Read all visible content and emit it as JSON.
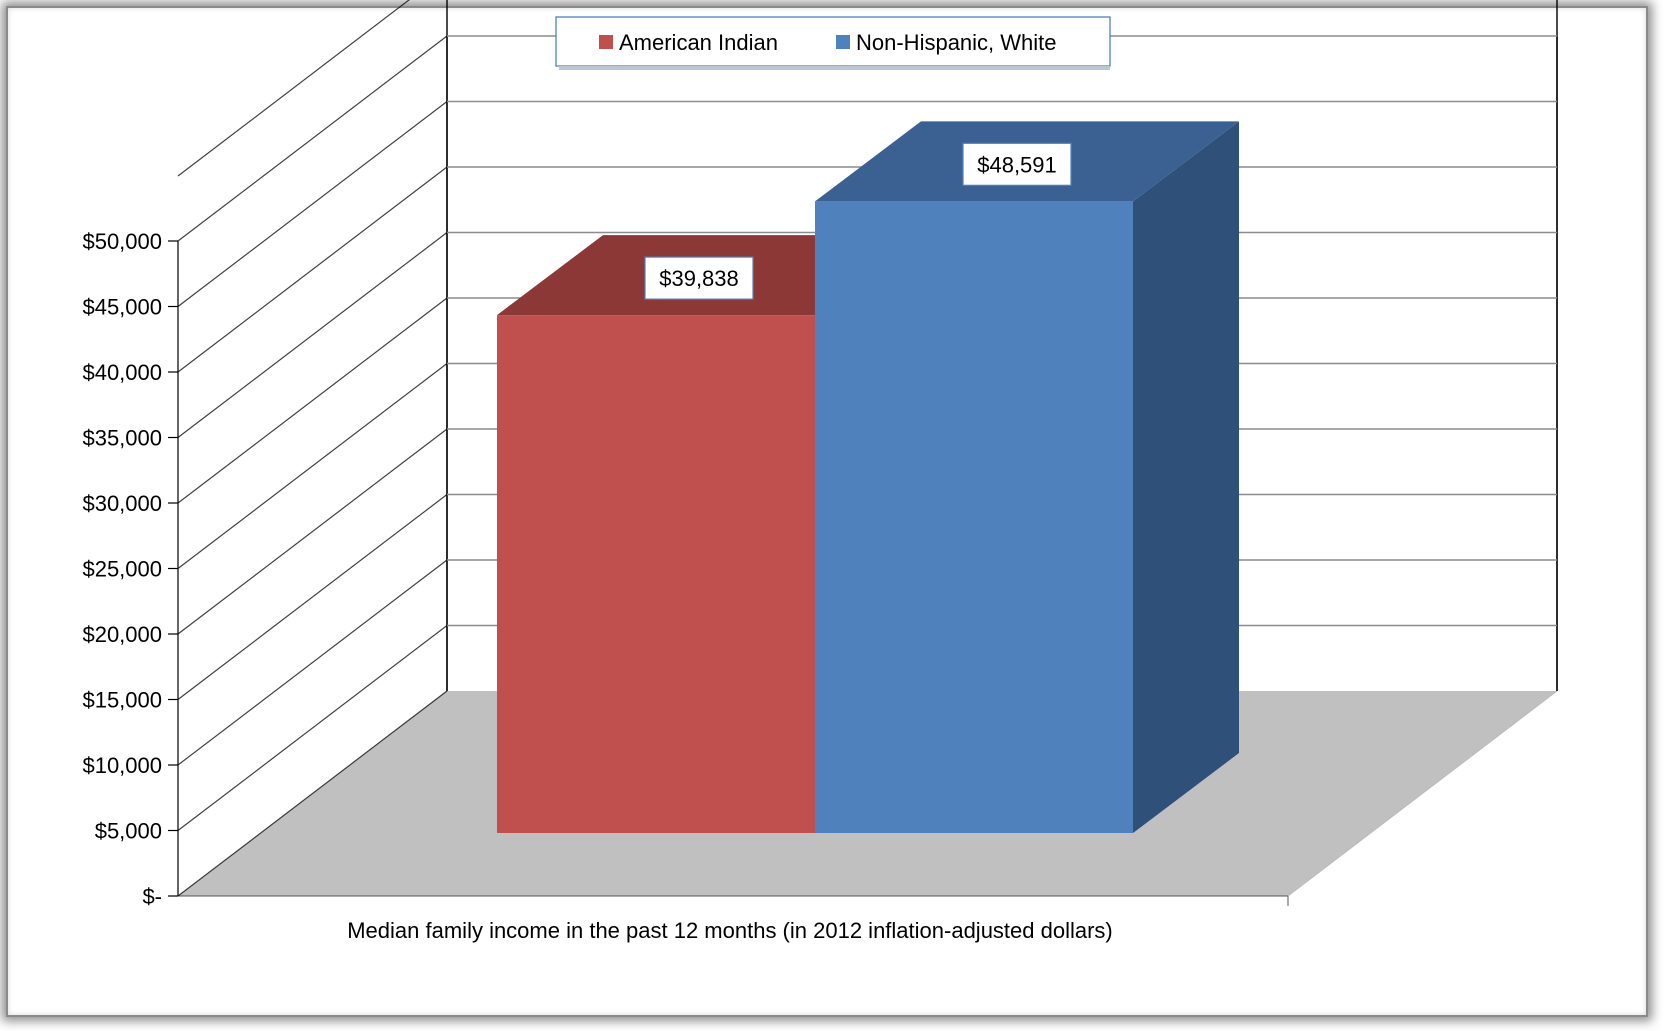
{
  "chart_data": {
    "type": "bar",
    "title": "",
    "categories": [
      "Median family income in the past 12 months (in 2012 inflation-adjusted dollars)"
    ],
    "series": [
      {
        "name": "American Indian",
        "values": [
          39838
        ],
        "value_label": "$39,838",
        "color": "#C0504D"
      },
      {
        "name": "Non-Hispanic, White",
        "values": [
          48591
        ],
        "value_label": "$48,591",
        "color": "#4F81BD"
      }
    ],
    "xlabel": "",
    "ylabel": "",
    "ylim": [
      0,
      50000
    ],
    "y_ticks": [
      {
        "value": 0,
        "label": "$-"
      },
      {
        "value": 5000,
        "label": "$5,000"
      },
      {
        "value": 10000,
        "label": "$10,000"
      },
      {
        "value": 15000,
        "label": "$15,000"
      },
      {
        "value": 20000,
        "label": "$20,000"
      },
      {
        "value": 25000,
        "label": "$25,000"
      },
      {
        "value": 30000,
        "label": "$30,000"
      },
      {
        "value": 35000,
        "label": "$35,000"
      },
      {
        "value": 40000,
        "label": "$40,000"
      },
      {
        "value": 45000,
        "label": "$45,000"
      },
      {
        "value": 50000,
        "label": "$50,000"
      }
    ],
    "grid": true,
    "legend_position": "top-center",
    "style": "3d-column"
  }
}
